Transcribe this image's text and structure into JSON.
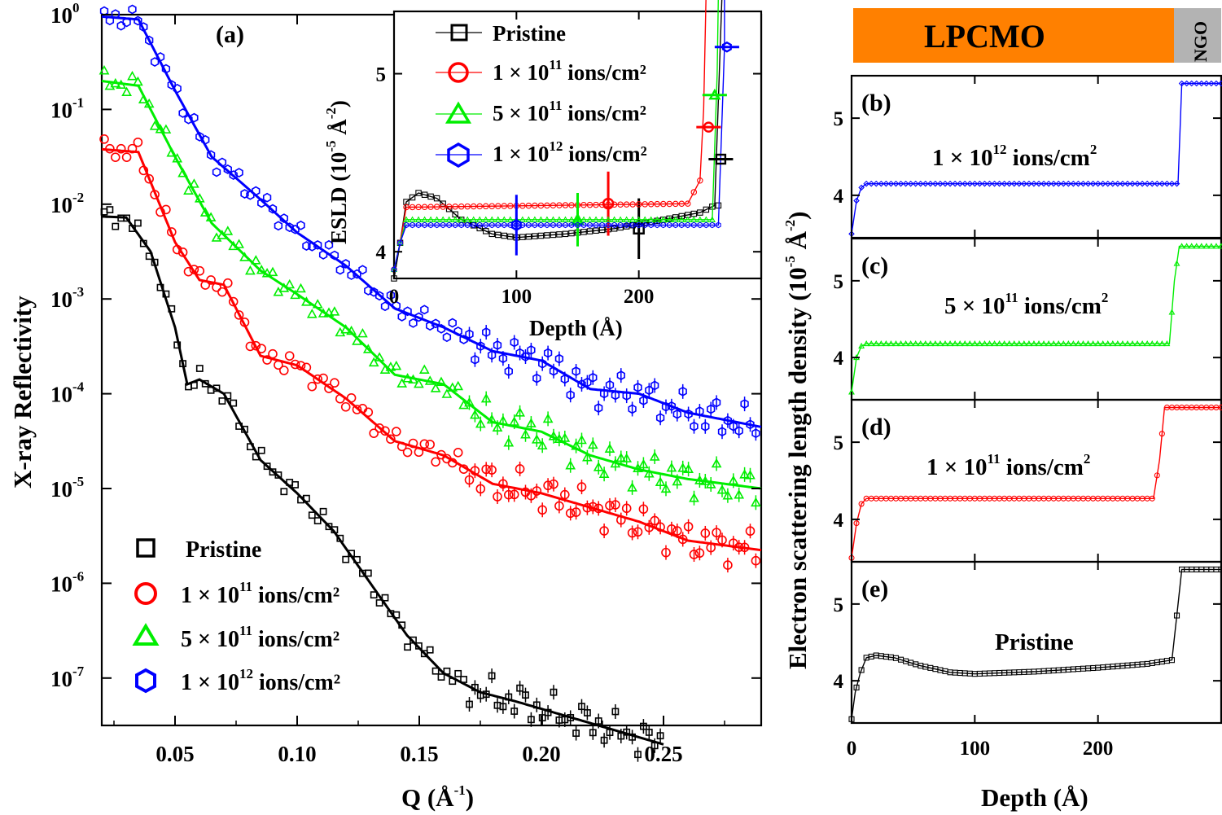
{
  "chart_data": [
    {
      "id": "a",
      "type": "scatter",
      "panel_label": "(a)",
      "title": "",
      "xlabel": "Q (Å",
      "xlabel_sup": "-1",
      "xlabel_tail": ")",
      "ylabel": "X-ray Reflectivity",
      "xlim": [
        0.02,
        0.29
      ],
      "ylim_log10": [
        -7.5,
        0
      ],
      "yscale": "log",
      "xticks": [
        "0.05",
        "0.10",
        "0.15",
        "0.20",
        "0.25"
      ],
      "xtick_values": [
        0.05,
        0.1,
        0.15,
        0.2,
        0.25
      ],
      "yticks": [
        {
          "base": "10",
          "exp": "0",
          "value": 0
        },
        {
          "base": "10",
          "exp": "-1",
          "value": -1
        },
        {
          "base": "10",
          "exp": "-2",
          "value": -2
        },
        {
          "base": "10",
          "exp": "-3",
          "value": -3
        },
        {
          "base": "10",
          "exp": "-4",
          "value": -4
        },
        {
          "base": "10",
          "exp": "-5",
          "value": -5
        },
        {
          "base": "10",
          "exp": "-6",
          "value": -6
        },
        {
          "base": "10",
          "exp": "-7",
          "value": -7
        }
      ],
      "legend_position": "bottom-left",
      "series": [
        {
          "name": "Pristine",
          "name_sup": "",
          "name_tail": "",
          "color": "#000000",
          "marker": "square",
          "scale_log10": -2.13,
          "q_end": 0.25,
          "fit_points": [
            [
              0.02,
              -2.13
            ],
            [
              0.03,
              -2.14
            ],
            [
              0.04,
              -2.5
            ],
            [
              0.05,
              -3.3
            ],
            [
              0.055,
              -3.9
            ],
            [
              0.06,
              -3.85
            ],
            [
              0.07,
              -4.0
            ],
            [
              0.085,
              -4.7
            ],
            [
              0.1,
              -5.05
            ],
            [
              0.115,
              -5.45
            ],
            [
              0.13,
              -6.0
            ],
            [
              0.145,
              -6.55
            ],
            [
              0.16,
              -6.95
            ],
            [
              0.175,
              -7.15
            ],
            [
              0.19,
              -7.25
            ],
            [
              0.21,
              -7.4
            ],
            [
              0.23,
              -7.55
            ],
            [
              0.25,
              -7.7
            ]
          ]
        },
        {
          "name": "1 × 10",
          "name_sup": "11",
          "name_tail": " ions/cm²",
          "color": "#ff0000",
          "marker": "circle",
          "scale_log10": -1.42,
          "q_end": 0.29,
          "fit_points": [
            [
              0.02,
              -1.42
            ],
            [
              0.035,
              -1.45
            ],
            [
              0.05,
              -2.4
            ],
            [
              0.06,
              -2.8
            ],
            [
              0.07,
              -2.85
            ],
            [
              0.085,
              -3.6
            ],
            [
              0.1,
              -3.7
            ],
            [
              0.12,
              -4.05
            ],
            [
              0.14,
              -4.5
            ],
            [
              0.16,
              -4.65
            ],
            [
              0.18,
              -4.95
            ],
            [
              0.2,
              -5.05
            ],
            [
              0.22,
              -5.2
            ],
            [
              0.24,
              -5.35
            ],
            [
              0.26,
              -5.55
            ],
            [
              0.29,
              -5.65
            ]
          ]
        },
        {
          "name": "5 × 10",
          "name_sup": "11",
          "name_tail": " ions/cm²",
          "color": "#00ee00",
          "marker": "triangle",
          "scale_log10": -0.7,
          "q_end": 0.29,
          "fit_points": [
            [
              0.02,
              -0.7
            ],
            [
              0.035,
              -0.75
            ],
            [
              0.05,
              -1.5
            ],
            [
              0.065,
              -2.2
            ],
            [
              0.085,
              -2.7
            ],
            [
              0.1,
              -2.95
            ],
            [
              0.12,
              -3.3
            ],
            [
              0.14,
              -3.8
            ],
            [
              0.16,
              -3.9
            ],
            [
              0.18,
              -4.3
            ],
            [
              0.2,
              -4.4
            ],
            [
              0.22,
              -4.65
            ],
            [
              0.24,
              -4.8
            ],
            [
              0.26,
              -4.9
            ],
            [
              0.29,
              -5.0
            ]
          ]
        },
        {
          "name": "1 × 10",
          "name_sup": "12",
          "name_tail": " ions/cm²",
          "color": "#0000ff",
          "marker": "hexagon",
          "scale_log10": -0.02,
          "q_end": 0.29,
          "fit_points": [
            [
              0.02,
              -0.02
            ],
            [
              0.035,
              -0.05
            ],
            [
              0.05,
              -0.8
            ],
            [
              0.065,
              -1.5
            ],
            [
              0.085,
              -1.95
            ],
            [
              0.1,
              -2.3
            ],
            [
              0.12,
              -2.65
            ],
            [
              0.14,
              -3.1
            ],
            [
              0.16,
              -3.3
            ],
            [
              0.18,
              -3.55
            ],
            [
              0.2,
              -3.65
            ],
            [
              0.22,
              -3.95
            ],
            [
              0.24,
              -4.0
            ],
            [
              0.26,
              -4.2
            ],
            [
              0.29,
              -4.35
            ]
          ]
        }
      ]
    },
    {
      "id": "inset",
      "type": "line",
      "xlabel": "Depth (Å)",
      "ylabel": "ESLD (10",
      "ylabel_sup": "-5",
      "ylabel_tail": " Å",
      "ylabel_sup2": "-2",
      "ylabel_end": ")",
      "xlim": [
        0,
        300
      ],
      "ylim": [
        3.85,
        5.35
      ],
      "xticks": [
        "0",
        "100",
        "200"
      ],
      "xtick_values": [
        0,
        100,
        200
      ],
      "yticks": [
        "4",
        "5"
      ],
      "ytick_values": [
        4,
        5
      ],
      "legend_position": "top-left",
      "series": [
        {
          "name": "Pristine",
          "color": "#000000",
          "marker": "square",
          "bulk": 4.1,
          "interface": 268,
          "substrate": 5.45,
          "points": [
            [
              0,
              3.85
            ],
            [
              5,
              4.05
            ],
            [
              10,
              4.28
            ],
            [
              20,
              4.33
            ],
            [
              35,
              4.3
            ],
            [
              55,
              4.18
            ],
            [
              80,
              4.1
            ],
            [
              100,
              4.08
            ],
            [
              140,
              4.1
            ],
            [
              180,
              4.13
            ],
            [
              220,
              4.18
            ],
            [
              250,
              4.22
            ],
            [
              262,
              4.26
            ]
          ],
          "error": [
            200,
            4.13,
            0.17
          ]
        },
        {
          "name": "1 × 10¹¹ ions/cm²",
          "color": "#ff0000",
          "marker": "circle",
          "bulk": 4.27,
          "interface": 255,
          "substrate": 5.45,
          "points": [
            [
              0,
              3.9
            ],
            [
              5,
              4.05
            ],
            [
              10,
              4.25
            ],
            [
              240,
              4.27
            ],
            [
              250,
              4.4
            ],
            [
              253,
              4.8
            ]
          ],
          "error": [
            175,
            4.27,
            0.18
          ]
        },
        {
          "name": "5 × 10¹¹ ions/cm²",
          "color": "#00ee00",
          "marker": "triangle",
          "bulk": 4.18,
          "interface": 265,
          "substrate": 5.45,
          "points": [
            [
              0,
              3.9
            ],
            [
              5,
              4.05
            ],
            [
              10,
              4.18
            ],
            [
              260,
              4.18
            ],
            [
              264,
              5.0
            ]
          ],
          "error": [
            150,
            4.18,
            0.15
          ]
        },
        {
          "name": "1 × 10¹² ions/cm²",
          "color": "#0000ff",
          "marker": "hexagon",
          "bulk": 4.15,
          "interface": 270,
          "substrate": 5.45,
          "points": [
            [
              0,
              3.9
            ],
            [
              5,
              4.05
            ],
            [
              10,
              4.15
            ],
            [
              265,
              4.15
            ],
            [
              270,
              5.15
            ]
          ],
          "error": [
            100,
            4.15,
            0.17
          ]
        }
      ]
    },
    {
      "id": "b",
      "type": "line",
      "panel_label": "(b)",
      "curve_label": "1 × 10",
      "curve_label_sup": "12",
      "curve_label_tail": " ions/cm",
      "curve_label_sup2": "2",
      "color": "#0000ff",
      "marker": "diamond",
      "xlim": [
        0,
        300
      ],
      "ylim": [
        3.45,
        5.55
      ],
      "yticks": [
        "4",
        "5"
      ],
      "ytick_values": [
        4,
        5
      ],
      "profile": [
        [
          0,
          3.5
        ],
        [
          4,
          3.93
        ],
        [
          8,
          4.1
        ],
        [
          12,
          4.15
        ],
        [
          265,
          4.15
        ],
        [
          268,
          5.45
        ],
        [
          300,
          5.45
        ]
      ]
    },
    {
      "id": "c",
      "type": "line",
      "panel_label": "(c)",
      "curve_label": "5 × 10",
      "curve_label_sup": "11",
      "curve_label_tail": " ions/cm",
      "curve_label_sup2": "2",
      "color": "#00ee00",
      "marker": "triangle",
      "xlim": [
        0,
        300
      ],
      "ylim": [
        3.45,
        5.55
      ],
      "yticks": [
        "4",
        "5"
      ],
      "ytick_values": [
        4,
        5
      ],
      "profile": [
        [
          0,
          3.55
        ],
        [
          4,
          4.0
        ],
        [
          8,
          4.15
        ],
        [
          12,
          4.18
        ],
        [
          258,
          4.18
        ],
        [
          262,
          5.0
        ],
        [
          266,
          5.45
        ],
        [
          300,
          5.45
        ]
      ]
    },
    {
      "id": "d",
      "type": "line",
      "panel_label": "(d)",
      "curve_label": "1 × 10",
      "curve_label_sup": "11",
      "curve_label_tail": " ions/cm",
      "curve_label_sup2": "2",
      "color": "#ff0000",
      "marker": "circle",
      "xlim": [
        0,
        300
      ],
      "ylim": [
        3.45,
        5.55
      ],
      "yticks": [
        "4",
        "5"
      ],
      "ytick_values": [
        4,
        5
      ],
      "profile": [
        [
          0,
          3.5
        ],
        [
          4,
          3.95
        ],
        [
          8,
          4.2
        ],
        [
          12,
          4.27
        ],
        [
          245,
          4.27
        ],
        [
          250,
          4.77
        ],
        [
          254,
          5.45
        ],
        [
          300,
          5.45
        ]
      ]
    },
    {
      "id": "e",
      "type": "line",
      "panel_label": "(e)",
      "curve_label": "Pristine",
      "curve_label_sup": "",
      "curve_label_tail": "",
      "curve_label_sup2": "",
      "color": "#000000",
      "marker": "square",
      "xlim": [
        0,
        300
      ],
      "ylim": [
        3.45,
        5.55
      ],
      "yticks": [
        "4",
        "5"
      ],
      "ytick_values": [
        4,
        5
      ],
      "xlabel": "Depth (Å)",
      "xticks": [
        "0",
        "100",
        "200"
      ],
      "xtick_values": [
        0,
        100,
        200
      ],
      "profile": [
        [
          0,
          3.5
        ],
        [
          3,
          3.85
        ],
        [
          7,
          4.1
        ],
        [
          12,
          4.3
        ],
        [
          20,
          4.33
        ],
        [
          35,
          4.3
        ],
        [
          55,
          4.2
        ],
        [
          80,
          4.11
        ],
        [
          100,
          4.09
        ],
        [
          150,
          4.12
        ],
        [
          200,
          4.17
        ],
        [
          240,
          4.22
        ],
        [
          260,
          4.27
        ],
        [
          264,
          4.85
        ],
        [
          268,
          5.45
        ],
        [
          300,
          5.45
        ]
      ]
    }
  ],
  "right_column": {
    "top_bar_left": "LPCMO",
    "top_bar_right": "NGO",
    "top_bar_left_color": "#ff8000",
    "top_bar_right_color": "#b3b3b3",
    "ylabel": "Electron scattering length density (10",
    "ylabel_sup": "-5",
    "ylabel_tail": " Å",
    "ylabel_sup2": "-2",
    "ylabel_end": ")"
  }
}
